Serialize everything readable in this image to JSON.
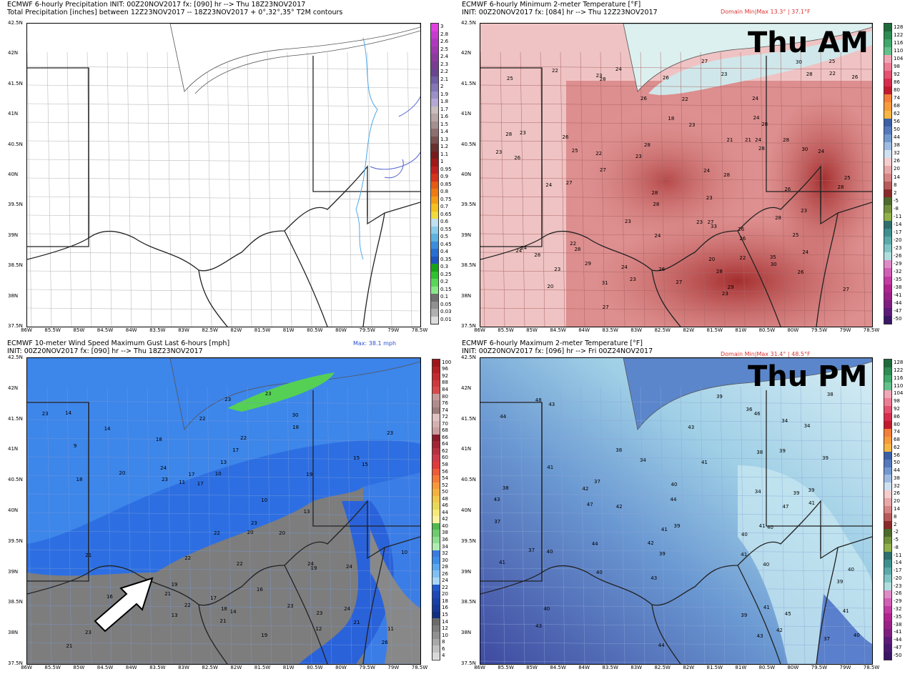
{
  "panels": [
    {
      "id": "precip",
      "line1": "ECMWF 6-hourly Precipitation INIT: 00Z20NOV2017 fx: [090] hr --> Thu 18Z23NOV2017",
      "line2": "Total Precipitation [inches] between 12Z23NOV2017 -- 18Z23NOV2017  + 0°,32°,35° T2M contours",
      "domain": "",
      "badge": "",
      "colorbar": [
        "3",
        "2.8",
        "2.6",
        "2.5",
        "2.4",
        "2.3",
        "2.2",
        "2.1",
        "2",
        "1.9",
        "1.8",
        "1.7",
        "1.6",
        "1.5",
        "1.4",
        "1.3",
        "1.2",
        "1.1",
        "1",
        "0.95",
        "0.9",
        "0.85",
        "0.8",
        "0.75",
        "0.7",
        "0.65",
        "0.6",
        "0.55",
        "0.5",
        "0.45",
        "0.4",
        "0.35",
        "0.3",
        "0.25",
        "0.2",
        "0.15",
        "0.1",
        "0.05",
        "0.03",
        "0.01"
      ],
      "colors": [
        "#e23fe2",
        "#c83ad0",
        "#b237c0",
        "#a038b0",
        "#8c3aa0",
        "#7a3c92",
        "#6a4590",
        "#705ea6",
        "#8576b8",
        "#9c90c8",
        "#b5a8d6",
        "#c9bdbd",
        "#b8a6a6",
        "#a68f8f",
        "#8e6f6f",
        "#7a5050",
        "#6a3030",
        "#7a1b1b",
        "#a01818",
        "#c01f1f",
        "#d8321a",
        "#e65a14",
        "#ef7a12",
        "#f49c14",
        "#f6c01d",
        "#f2dc3a",
        "#bfe0f0",
        "#8ccce8",
        "#5eb2e0",
        "#3a8ee0",
        "#2a6fd4",
        "#1e55c0",
        "#17a317",
        "#2fc22f",
        "#58d858",
        "#88e888",
        "#707070",
        "#909090",
        "#b0b0b0",
        "#dcdcdc"
      ]
    },
    {
      "id": "tmin",
      "line1": "ECMWF 6-hourly Minimum 2-meter Temperature [°F]",
      "line2": "INIT: 00Z20NOV2017 fx: [084] hr --> Thu 12Z23NOV2017",
      "domain": "Domain Min|Max 13.3° | 37.1°F",
      "badge": "Thu AM",
      "colorbar": [
        "128",
        "122",
        "116",
        "110",
        "104",
        "98",
        "92",
        "86",
        "80",
        "74",
        "68",
        "62",
        "56",
        "50",
        "44",
        "38",
        "32",
        "26",
        "20",
        "14",
        "8",
        "2",
        "-5",
        "-8",
        "-11",
        "-14",
        "-17",
        "-20",
        "-23",
        "-26",
        "-29",
        "-32",
        "-35",
        "-38",
        "-41",
        "-44",
        "-47",
        "-50"
      ],
      "colors": [
        "#1e6b3a",
        "#2e8b52",
        "#3fa86a",
        "#63c08a",
        "#f3a6b6",
        "#ee7c94",
        "#e4526f",
        "#d82c4d",
        "#c21a2d",
        "#f37e3a",
        "#f69a3b",
        "#f8b543",
        "#3a5fa6",
        "#5379bc",
        "#7298d0",
        "#9ebce2",
        "#cfe1f1",
        "#f6cccc",
        "#e9a8a8",
        "#d88484",
        "#b85a5a",
        "#8a2a2a",
        "#4d6a2d",
        "#6f8f3a",
        "#8fb04a",
        "#2e6e6e",
        "#3e8f8f",
        "#5aaaaa",
        "#7fc5c5",
        "#b0dede",
        "#e08ac8",
        "#d35eb5",
        "#c33aa3",
        "#b0238e",
        "#992086",
        "#7f1e80",
        "#5e1a78",
        "#3b1566"
      ]
    },
    {
      "id": "gust",
      "line1": "ECMWF 10-meter Wind Speed Maximum Gust Last 6-hours [mph]",
      "line2": "INIT: 00Z20NOV2017 fx: [090] hr --> Thu 18Z23NOV2017",
      "domain": "Max: 38.1 mph",
      "badge": "",
      "colorbar": [
        "100",
        "96",
        "92",
        "88",
        "84",
        "80",
        "76",
        "74",
        "72",
        "70",
        "68",
        "66",
        "64",
        "62",
        "60",
        "58",
        "56",
        "54",
        "52",
        "50",
        "48",
        "46",
        "44",
        "42",
        "40",
        "38",
        "36",
        "34",
        "32",
        "30",
        "28",
        "26",
        "24",
        "22",
        "20",
        "18",
        "16",
        "15",
        "14",
        "12",
        "10",
        "8",
        "6",
        "4"
      ],
      "colors": [
        "#a0151a",
        "#b41f24",
        "#c42a2e",
        "#d0393c",
        "#d84a4a",
        "#c49a9a",
        "#b08c8c",
        "#9c7c7c",
        "#e0c2c2",
        "#d4b0b0",
        "#c89e9e",
        "#8a1a2a",
        "#a32435",
        "#b83040",
        "#cf3a4a",
        "#e23a3a",
        "#ee5a3a",
        "#f47a3a",
        "#f6983a",
        "#f4b13e",
        "#f0c84a",
        "#e8d85a",
        "#f5e97a",
        "#fbf2a0",
        "#4fb84f",
        "#6ecb6e",
        "#8edc8e",
        "#b0ecb0",
        "#3a7be0",
        "#3c8ee8",
        "#58a8ee",
        "#80c0f2",
        "#a8d6f6",
        "#2159cc",
        "#1c48b8",
        "#1840a6",
        "#173894",
        "#123080",
        "#6a6a6a",
        "#7d7d7d",
        "#909090",
        "#a8a8a8",
        "#c0c0c0",
        "#d8d8d8"
      ]
    },
    {
      "id": "tmax",
      "line1": "ECMWF 6-hourly Maximum 2-meter Temperature [°F]",
      "line2": "INIT: 00Z20NOV2017 fx: [096] hr --> Fri 00Z24NOV2017",
      "domain": "Domain Min|Max 31.4° | 48.5°F",
      "badge": "Thu PM",
      "colorbar": [
        "128",
        "122",
        "116",
        "110",
        "104",
        "98",
        "92",
        "86",
        "80",
        "74",
        "68",
        "62",
        "56",
        "50",
        "44",
        "38",
        "32",
        "26",
        "20",
        "14",
        "8",
        "2",
        "-2",
        "-5",
        "-8",
        "-11",
        "-14",
        "-17",
        "-20",
        "-23",
        "-26",
        "-29",
        "-32",
        "-35",
        "-38",
        "-41",
        "-44",
        "-47",
        "-50"
      ],
      "colors": [
        "#1e6b3a",
        "#2e8b52",
        "#3fa86a",
        "#63c08a",
        "#f3a6b6",
        "#ee7c94",
        "#e4526f",
        "#d82c4d",
        "#c21a2d",
        "#f37e3a",
        "#f69a3b",
        "#f8b543",
        "#3a5fa6",
        "#5379bc",
        "#7298d0",
        "#9ebce2",
        "#cfe1f1",
        "#f6cccc",
        "#e9a8a8",
        "#d88484",
        "#b85a5a",
        "#8a2a2a",
        "#4d6a2d",
        "#6f8f3a",
        "#8fb04a",
        "#2e6e6e",
        "#3e8f8f",
        "#5aaaaa",
        "#7fc5c5",
        "#b0dede",
        "#e08ac8",
        "#d35eb5",
        "#c33aa3",
        "#b0238e",
        "#992086",
        "#7f1e80",
        "#5e1a78",
        "#4a1770",
        "#3b1566"
      ]
    }
  ],
  "lat_labels": [
    "42.5N",
    "42N",
    "41.5N",
    "41N",
    "40.5N",
    "40N",
    "39.5N",
    "39N",
    "38.5N",
    "38N",
    "37.5N"
  ],
  "lon_labels": [
    "86W",
    "85.5W",
    "85W",
    "84.5W",
    "84W",
    "83.5W",
    "83W",
    "82.5W",
    "82W",
    "81.5W",
    "81W",
    "80.5W",
    "80W",
    "79.5W",
    "79W",
    "78.5W"
  ],
  "tmin_values": [
    "29",
    "28",
    "28",
    "26",
    "28",
    "28",
    "28",
    "27",
    "28",
    "29",
    "28",
    "28",
    "28",
    "27",
    "28",
    "30",
    "26",
    "28",
    "28",
    "30",
    "35",
    "33",
    "31",
    "30",
    "28",
    "28",
    "27",
    "25",
    "27",
    "26",
    "26",
    "25",
    "24",
    "24",
    "24",
    "26",
    "27",
    "23",
    "25",
    "26",
    "26",
    "24",
    "26",
    "24",
    "23",
    "23",
    "23",
    "24",
    "23",
    "22",
    "23",
    "23",
    "22",
    "24",
    "25",
    "27",
    "26",
    "28",
    "27",
    "24",
    "23",
    "23",
    "24",
    "24",
    "23",
    "20",
    "22",
    "20",
    "22",
    "23",
    "24",
    "21",
    "23",
    "22",
    "23",
    "25",
    "26",
    "22",
    "21",
    "24",
    "18"
  ],
  "tmax_values": [
    "41",
    "40",
    "39",
    "39",
    "39",
    "39",
    "39",
    "40",
    "41",
    "42",
    "41",
    "40",
    "41",
    "40",
    "40",
    "37",
    "34",
    "37",
    "34",
    "34",
    "39",
    "37",
    "34",
    "36",
    "41",
    "40",
    "41",
    "38",
    "40",
    "40",
    "39",
    "39",
    "38",
    "41",
    "42",
    "43",
    "41",
    "39",
    "40",
    "43",
    "42",
    "44",
    "43",
    "44",
    "43",
    "38",
    "38",
    "37",
    "41",
    "43",
    "43",
    "42",
    "44",
    "45",
    "44",
    "47",
    "46",
    "48",
    "47"
  ],
  "gust_values": [
    "23",
    "24",
    "23",
    "22",
    "22",
    "23",
    "24",
    "30",
    "23",
    "21",
    "26",
    "23",
    "22",
    "23",
    "23",
    "24",
    "24",
    "21",
    "22",
    "23",
    "23",
    "21",
    "21",
    "20",
    "19",
    "18",
    "17",
    "17",
    "15",
    "16",
    "21",
    "22",
    "22",
    "21",
    "20",
    "19",
    "18",
    "19",
    "18",
    "17",
    "20",
    "19",
    "18",
    "13",
    "13",
    "11",
    "13",
    "14",
    "10",
    "11",
    "9",
    "10",
    "14",
    "12",
    "16",
    "14",
    "15",
    "17",
    "10"
  ]
}
